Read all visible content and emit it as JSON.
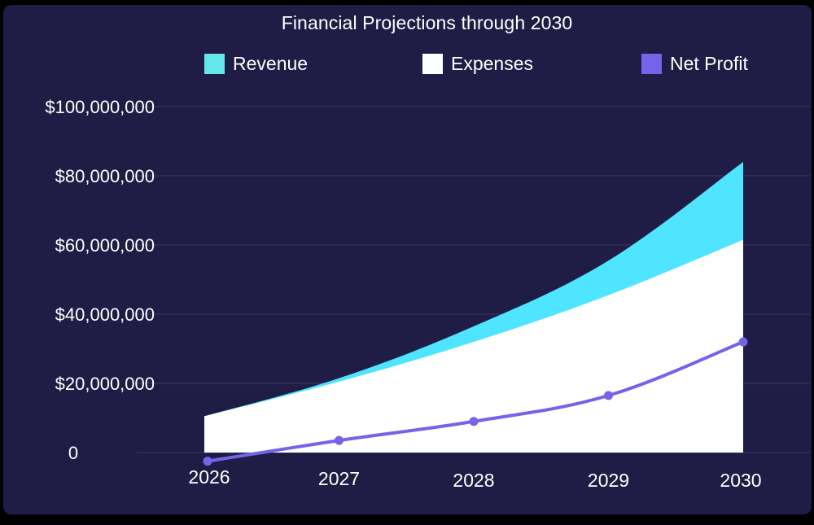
{
  "chart_data": {
    "type": "area",
    "title": "Financial Projections through 2030",
    "xlabel": "",
    "ylabel": "",
    "categories": [
      "2026",
      "2027",
      "2028",
      "2029",
      "2030"
    ],
    "ylim": [
      0,
      100000000
    ],
    "yticks": [
      0,
      20000000,
      40000000,
      60000000,
      80000000,
      100000000
    ],
    "ytick_labels": [
      "0",
      "$20,000,000",
      "$40,000,000",
      "$60,000,000",
      "$80,000,000",
      "$100,000,000"
    ],
    "grid": true,
    "legend_position": "top",
    "series": [
      {
        "name": "Revenue",
        "kind": "area",
        "color": "#4fe4ff",
        "values": [
          10500000,
          21500000,
          36500000,
          55500000,
          84000000
        ]
      },
      {
        "name": "Expenses",
        "kind": "area",
        "color": "#ffffff",
        "values": [
          10500000,
          20500000,
          32000000,
          45500000,
          61500000
        ]
      },
      {
        "name": "Net Profit",
        "kind": "line",
        "color": "#7663ea",
        "values": [
          -2500000,
          3500000,
          9000000,
          16500000,
          32000000
        ]
      }
    ]
  },
  "legend": [
    {
      "label": "Revenue",
      "color": "#63e6ec"
    },
    {
      "label": "Expenses",
      "color": "#ffffff"
    },
    {
      "label": "Net Profit",
      "color": "#7663ea"
    }
  ],
  "colors": {
    "background": "#1f1d45",
    "gridline": "#3b3962",
    "text": "#ffffff"
  }
}
